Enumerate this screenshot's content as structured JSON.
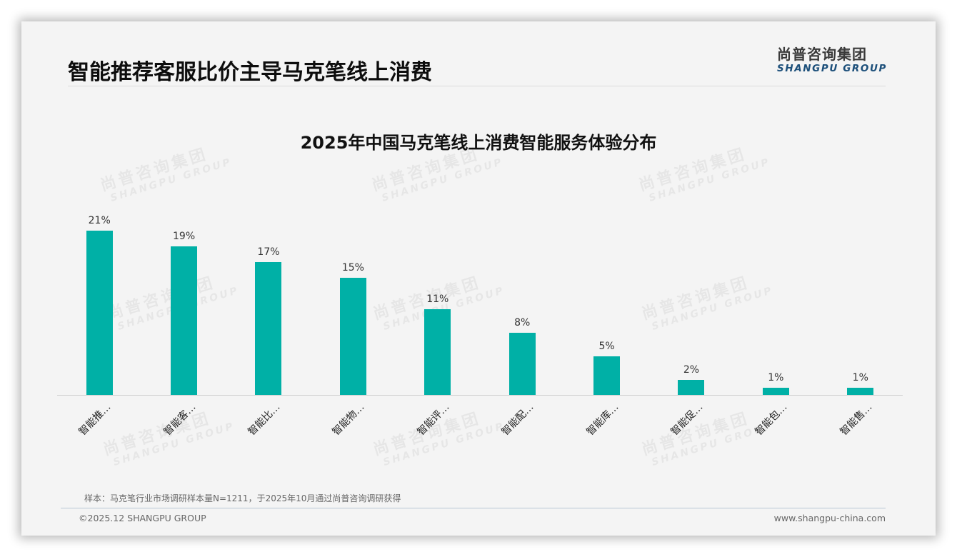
{
  "header": {
    "title": "智能推荐客服比价主导马克笔线上消费",
    "logo_cn": "尚普咨询集团",
    "logo_en": "SHANGPU GROUP"
  },
  "watermark": {
    "cn": "尚普咨询集团",
    "en": "SHANGPU GROUP"
  },
  "chart_data": {
    "type": "bar",
    "title": "2025年中国马克笔线上消费智能服务体验分布",
    "categories": [
      "智能推…",
      "智能客…",
      "智能比…",
      "智能物…",
      "智能评…",
      "智能配…",
      "智能库…",
      "智能促…",
      "智能包…",
      "智能售…"
    ],
    "values": [
      21,
      19,
      17,
      15,
      11,
      8,
      5,
      2,
      1,
      1
    ],
    "value_labels": [
      "21%",
      "19%",
      "17%",
      "15%",
      "11%",
      "8%",
      "5%",
      "2%",
      "1%",
      "1%"
    ],
    "unit": "%",
    "xlabel": "",
    "ylabel": "",
    "ylim": [
      0,
      25
    ],
    "grid": false,
    "legend": null,
    "bar_color": "#00b0a6"
  },
  "footer": {
    "note": "样本：马克笔行业市场调研样本量N=1211，于2025年10月通过尚普咨询调研获得",
    "copyright": "©2025.12 SHANGPU GROUP",
    "url": "www.shangpu-china.com"
  }
}
